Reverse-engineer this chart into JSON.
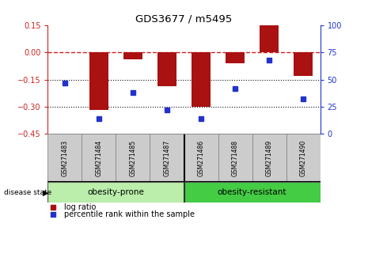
{
  "title": "GDS3677 / m5495",
  "samples": [
    "GSM271483",
    "GSM271484",
    "GSM271485",
    "GSM271487",
    "GSM271486",
    "GSM271488",
    "GSM271489",
    "GSM271490"
  ],
  "log_ratio": [
    0.0,
    -0.32,
    -0.04,
    -0.185,
    -0.3,
    -0.06,
    0.148,
    -0.13
  ],
  "percentile_rank": [
    47,
    14,
    38,
    22,
    14,
    42,
    68,
    32
  ],
  "ylim_left": [
    -0.45,
    0.15
  ],
  "ylim_right": [
    0,
    100
  ],
  "yticks_left": [
    0.15,
    0,
    -0.15,
    -0.3,
    -0.45
  ],
  "yticks_right": [
    100,
    75,
    50,
    25,
    0
  ],
  "groups": [
    {
      "label": "obesity-prone",
      "start": 0,
      "end": 4,
      "color": "#bbeeaa"
    },
    {
      "label": "obesity-resistant",
      "start": 4,
      "end": 8,
      "color": "#44cc44"
    }
  ],
  "bar_color": "#aa1111",
  "point_color": "#2233cc",
  "hline_color": "#cc2222",
  "dotted_line_color": "#111111",
  "background_color": "#ffffff",
  "plot_bg": "#ffffff",
  "label_box_color": "#cccccc",
  "legend_log_ratio_color": "#aa1111",
  "legend_pct_color": "#2233cc",
  "bar_width": 0.55
}
